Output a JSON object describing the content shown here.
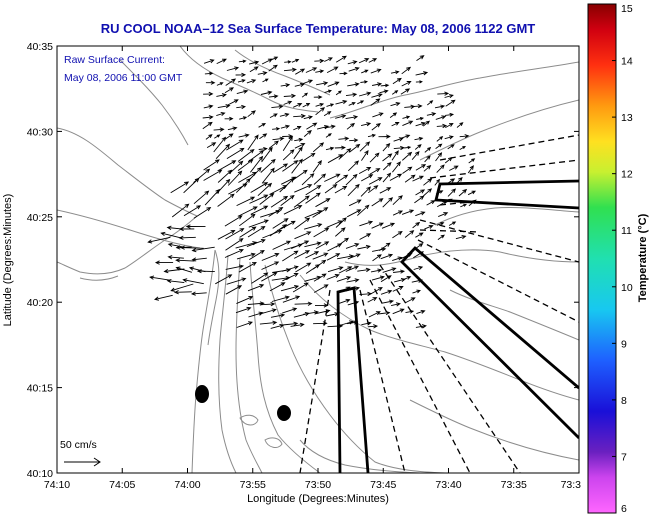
{
  "title": "RU COOL  NOAA–12  Sea Surface Temperature:  May 08, 2006 1122 GMT",
  "current_label": "Raw Surface Current:",
  "current_time": "May 08, 2006 11:00 GMT",
  "scale_label": "50 cm/s",
  "x_axis": {
    "label": "Longitude (Degrees:Minutes)",
    "ticks": [
      "74:10",
      "74:05",
      "74:00",
      "73:55",
      "73:50",
      "73:45",
      "73:40",
      "73:35",
      "73:3"
    ]
  },
  "y_axis": {
    "label": "Latitude (Degrees:Minutes)",
    "ticks": [
      "40:35",
      "40:30",
      "40:25",
      "40:20",
      "40:15",
      "40:10"
    ]
  },
  "colorbar": {
    "label": "Temperature (°C)",
    "ticks": [
      "15",
      "14",
      "13",
      "12",
      "11",
      "10",
      "9",
      "8",
      "7",
      "6"
    ],
    "min": 6,
    "max": 15
  },
  "colors": {
    "title": "#1010b0",
    "contour": "#8c8c8c",
    "frame": "#000000"
  }
}
